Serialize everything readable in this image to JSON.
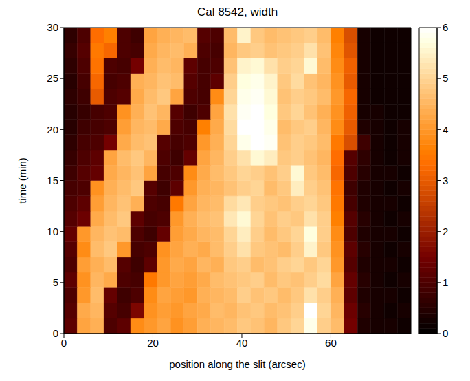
{
  "chart_data": {
    "type": "heatmap",
    "title": "Cal 8542, width",
    "x_label": "position along the slit (arcsec)",
    "y_label": "time (min)",
    "xlim": [
      0,
      78
    ],
    "xticks": [
      0,
      20,
      40,
      60
    ],
    "ylim": [
      0,
      30
    ],
    "yticks": [
      0,
      5,
      10,
      15,
      20,
      25,
      30
    ],
    "x": [
      1.5,
      4.5,
      7.5,
      10.5,
      13.5,
      16.5,
      19.5,
      22.5,
      25.5,
      28.5,
      31.5,
      34.5,
      37.5,
      40.5,
      43.5,
      46.5,
      49.5,
      52.5,
      55.5,
      58.5,
      61.5,
      64.5,
      67.5,
      70.5,
      73.5,
      76.5
    ],
    "y": [
      0.75,
      2.25,
      3.75,
      5.25,
      6.75,
      8.25,
      9.75,
      11.25,
      12.75,
      14.25,
      15.75,
      17.25,
      18.75,
      20.25,
      21.75,
      23.25,
      24.75,
      26.25,
      27.75,
      29.25
    ],
    "z": [
      [
        1.2,
        4.2,
        4.4,
        1.0,
        1.2,
        3.8,
        4.0,
        4.2,
        3.9,
        4.1,
        4.4,
        4.5,
        4.6,
        4.8,
        4.7,
        4.5,
        4.8,
        5.0,
        5.8,
        4.9,
        4.6,
        1.5,
        0.4,
        0.3,
        0.3,
        0.2
      ],
      [
        1.1,
        4.3,
        4.5,
        1.1,
        0.9,
        1.6,
        3.9,
        4.1,
        4.0,
        4.2,
        4.3,
        4.6,
        4.5,
        4.7,
        4.8,
        4.6,
        4.7,
        4.9,
        6.0,
        5.0,
        4.5,
        1.4,
        0.5,
        0.3,
        0.2,
        0.3
      ],
      [
        1.0,
        4.0,
        4.6,
        1.3,
        0.8,
        1.0,
        3.8,
        4.2,
        4.1,
        4.0,
        4.4,
        4.5,
        4.6,
        4.9,
        4.7,
        4.8,
        4.6,
        4.8,
        5.2,
        4.9,
        4.4,
        1.2,
        0.4,
        0.3,
        0.3,
        0.2
      ],
      [
        1.2,
        3.9,
        4.5,
        4.3,
        1.0,
        0.9,
        3.5,
        4.0,
        4.2,
        4.1,
        4.3,
        4.6,
        4.7,
        4.8,
        4.9,
        4.6,
        4.8,
        4.7,
        4.9,
        5.1,
        4.2,
        1.3,
        0.5,
        0.3,
        0.2,
        0.3
      ],
      [
        1.0,
        4.1,
        4.4,
        4.6,
        1.1,
        0.8,
        1.2,
        4.0,
        4.3,
        4.2,
        4.5,
        4.4,
        4.8,
        4.9,
        4.6,
        4.7,
        4.9,
        5.0,
        4.8,
        5.0,
        4.0,
        1.1,
        0.4,
        0.3,
        0.3,
        0.2
      ],
      [
        1.1,
        3.8,
        4.6,
        4.8,
        4.0,
        0.9,
        1.0,
        3.9,
        4.2,
        4.4,
        4.3,
        4.6,
        4.9,
        5.2,
        4.8,
        4.7,
        4.6,
        4.9,
        5.5,
        4.8,
        3.9,
        1.2,
        0.5,
        0.3,
        0.2,
        0.3
      ],
      [
        1.3,
        4.0,
        4.5,
        4.7,
        4.6,
        1.0,
        0.8,
        1.3,
        4.1,
        4.3,
        4.5,
        4.6,
        5.0,
        5.4,
        4.9,
        4.6,
        4.8,
        5.0,
        5.7,
        4.9,
        3.8,
        1.0,
        0.4,
        0.3,
        0.3,
        0.2
      ],
      [
        1.1,
        1.4,
        4.3,
        4.6,
        4.8,
        1.2,
        0.9,
        1.0,
        4.0,
        4.4,
        4.6,
        4.7,
        5.3,
        5.6,
        5.0,
        4.7,
        4.9,
        4.8,
        5.2,
        4.9,
        3.6,
        1.1,
        0.5,
        0.3,
        0.2,
        0.3
      ],
      [
        1.0,
        1.2,
        4.1,
        4.5,
        4.7,
        4.4,
        1.0,
        0.9,
        3.5,
        4.2,
        4.5,
        4.6,
        5.1,
        5.3,
        4.9,
        4.8,
        4.7,
        4.9,
        5.0,
        4.8,
        3.5,
        0.9,
        0.4,
        0.3,
        0.3,
        0.2
      ],
      [
        0.9,
        1.0,
        3.9,
        4.4,
        4.6,
        4.8,
        1.1,
        0.8,
        1.2,
        4.0,
        4.4,
        4.5,
        4.7,
        4.9,
        5.0,
        4.6,
        4.8,
        5.4,
        4.9,
        4.7,
        3.4,
        0.8,
        0.4,
        0.3,
        0.2,
        0.3
      ],
      [
        0.8,
        1.1,
        1.3,
        4.3,
        4.5,
        4.7,
        4.2,
        0.9,
        1.0,
        3.8,
        4.3,
        4.6,
        4.8,
        5.0,
        4.9,
        4.7,
        4.9,
        5.6,
        4.8,
        4.6,
        3.2,
        1.0,
        0.5,
        0.3,
        0.3,
        0.2
      ],
      [
        0.7,
        1.0,
        1.2,
        4.2,
        4.6,
        4.8,
        4.5,
        1.0,
        0.8,
        1.3,
        4.2,
        4.5,
        4.9,
        5.2,
        5.6,
        5.4,
        4.8,
        4.9,
        4.7,
        4.5,
        3.3,
        1.1,
        0.6,
        0.3,
        0.2,
        0.3
      ],
      [
        0.6,
        0.9,
        1.0,
        1.5,
        4.3,
        4.6,
        4.7,
        1.1,
        0.9,
        1.0,
        4.0,
        4.4,
        5.0,
        5.8,
        6.0,
        5.9,
        4.7,
        4.9,
        4.8,
        4.6,
        3.5,
        2.8,
        0.8,
        0.3,
        0.2,
        0.3
      ],
      [
        0.5,
        0.8,
        0.9,
        1.0,
        4.1,
        4.5,
        4.6,
        4.3,
        1.0,
        0.9,
        3.6,
        4.3,
        5.1,
        6.0,
        6.0,
        5.8,
        4.6,
        4.8,
        4.9,
        4.5,
        3.8,
        3.0,
        0.4,
        0.3,
        0.2,
        0.3
      ],
      [
        0.5,
        0.7,
        0.9,
        1.0,
        3.9,
        4.4,
        4.7,
        4.5,
        1.1,
        0.8,
        1.0,
        4.2,
        5.2,
        5.9,
        6.0,
        5.7,
        4.8,
        5.0,
        4.7,
        4.4,
        3.9,
        3.1,
        0.3,
        0.3,
        0.2,
        0.2
      ],
      [
        0.6,
        0.8,
        3.0,
        1.0,
        1.1,
        4.3,
        4.6,
        4.8,
        4.2,
        1.0,
        0.9,
        3.8,
        5.0,
        5.8,
        5.9,
        5.6,
        4.7,
        4.9,
        4.8,
        4.6,
        4.0,
        3.2,
        0.3,
        0.2,
        0.2,
        0.2
      ],
      [
        0.5,
        0.9,
        3.2,
        0.9,
        1.0,
        4.4,
        4.5,
        4.7,
        4.6,
        1.1,
        0.9,
        1.2,
        4.9,
        5.7,
        5.8,
        5.5,
        4.8,
        5.1,
        4.7,
        4.5,
        3.9,
        3.0,
        0.3,
        0.2,
        0.2,
        0.2
      ],
      [
        0.6,
        1.0,
        3.4,
        1.0,
        0.9,
        1.5,
        4.4,
        4.6,
        4.5,
        1.2,
        0.9,
        1.0,
        4.7,
        5.5,
        5.6,
        5.2,
        4.9,
        5.0,
        5.6,
        4.6,
        3.8,
        3.1,
        0.3,
        0.2,
        0.2,
        0.2
      ],
      [
        0.7,
        1.1,
        3.5,
        3.2,
        1.0,
        0.9,
        4.3,
        4.5,
        4.6,
        4.4,
        1.0,
        0.9,
        4.5,
        4.8,
        4.9,
        4.7,
        4.8,
        4.9,
        5.2,
        4.7,
        3.7,
        2.9,
        0.3,
        0.2,
        0.2,
        0.2
      ],
      [
        0.6,
        1.0,
        3.3,
        3.6,
        1.0,
        0.8,
        4.2,
        4.4,
        4.5,
        4.6,
        1.1,
        1.0,
        4.6,
        5.5,
        4.8,
        4.6,
        4.7,
        4.8,
        4.9,
        4.6,
        3.6,
        2.8,
        0.3,
        0.2,
        0.2,
        0.2
      ]
    ],
    "colorbar": {
      "range": [
        0,
        6
      ],
      "ticks": [
        0,
        1,
        2,
        3,
        4,
        5,
        6
      ]
    }
  }
}
